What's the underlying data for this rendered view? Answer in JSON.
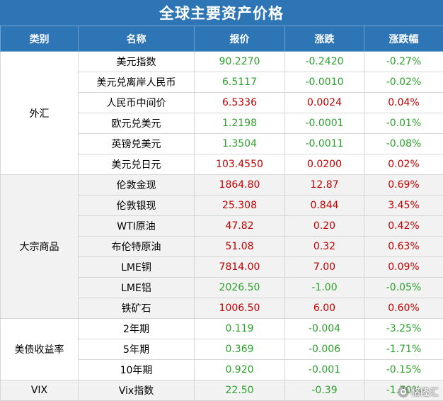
{
  "title": "全球主要资产价格",
  "headers": [
    "类别",
    "名称",
    "报价",
    "涨跌",
    "涨跌幅"
  ],
  "colors": {
    "header_bg": "#2e75b6",
    "up": "#c00000",
    "down": "#2da02d"
  },
  "groups": [
    {
      "category": "外汇",
      "rows": [
        {
          "name": "美元指数",
          "price": "90.2270",
          "change": "-0.2420",
          "pct": "-0.27%",
          "dir": "down"
        },
        {
          "name": "美元兑离岸人民币",
          "price": "6.5117",
          "change": "-0.0010",
          "pct": "-0.02%",
          "dir": "down"
        },
        {
          "name": "人民币中间价",
          "price": "6.5336",
          "change": "0.0024",
          "pct": "0.04%",
          "dir": "up"
        },
        {
          "name": "欧元兑美元",
          "price": "1.2198",
          "change": "-0.0001",
          "pct": "-0.01%",
          "dir": "down"
        },
        {
          "name": "英镑兑美元",
          "price": "1.3504",
          "change": "-0.0011",
          "pct": "-0.08%",
          "dir": "down"
        },
        {
          "name": "美元兑日元",
          "price": "103.4550",
          "change": "0.0200",
          "pct": "0.02%",
          "dir": "up"
        }
      ]
    },
    {
      "category": "大宗商品",
      "rows": [
        {
          "name": "伦敦金现",
          "price": "1864.80",
          "change": "12.87",
          "pct": "0.69%",
          "dir": "up"
        },
        {
          "name": "伦敦银现",
          "price": "25.308",
          "change": "0.844",
          "pct": "3.45%",
          "dir": "up"
        },
        {
          "name": "WTI原油",
          "price": "47.82",
          "change": "0.20",
          "pct": "0.42%",
          "dir": "up"
        },
        {
          "name": "布伦特原油",
          "price": "51.08",
          "change": "0.32",
          "pct": "0.63%",
          "dir": "up"
        },
        {
          "name": "LME铜",
          "price": "7814.00",
          "change": "7.00",
          "pct": "0.09%",
          "dir": "up"
        },
        {
          "name": "LME铝",
          "price": "2026.50",
          "change": "-1.00",
          "pct": "-0.05%",
          "dir": "down"
        },
        {
          "name": "铁矿石",
          "price": "1006.50",
          "change": "6.00",
          "pct": "0.60%",
          "dir": "up"
        }
      ]
    },
    {
      "category": "美债收益率",
      "rows": [
        {
          "name": "2年期",
          "price": "0.119",
          "change": "-0.004",
          "pct": "-3.25%",
          "dir": "down"
        },
        {
          "name": "5年期",
          "price": "0.369",
          "change": "-0.006",
          "pct": "-1.71%",
          "dir": "down"
        },
        {
          "name": "10年期",
          "price": "0.920",
          "change": "-0.001",
          "pct": "-0.15%",
          "dir": "down"
        }
      ]
    },
    {
      "category": "VIX",
      "rows": [
        {
          "name": "Vix指数",
          "price": "22.50",
          "change": "-0.39",
          "pct": "-1.70%",
          "dir": "down"
        }
      ]
    }
  ],
  "watermark": {
    "text": "格隆汇",
    "icon": "gelonghui-logo-icon"
  }
}
